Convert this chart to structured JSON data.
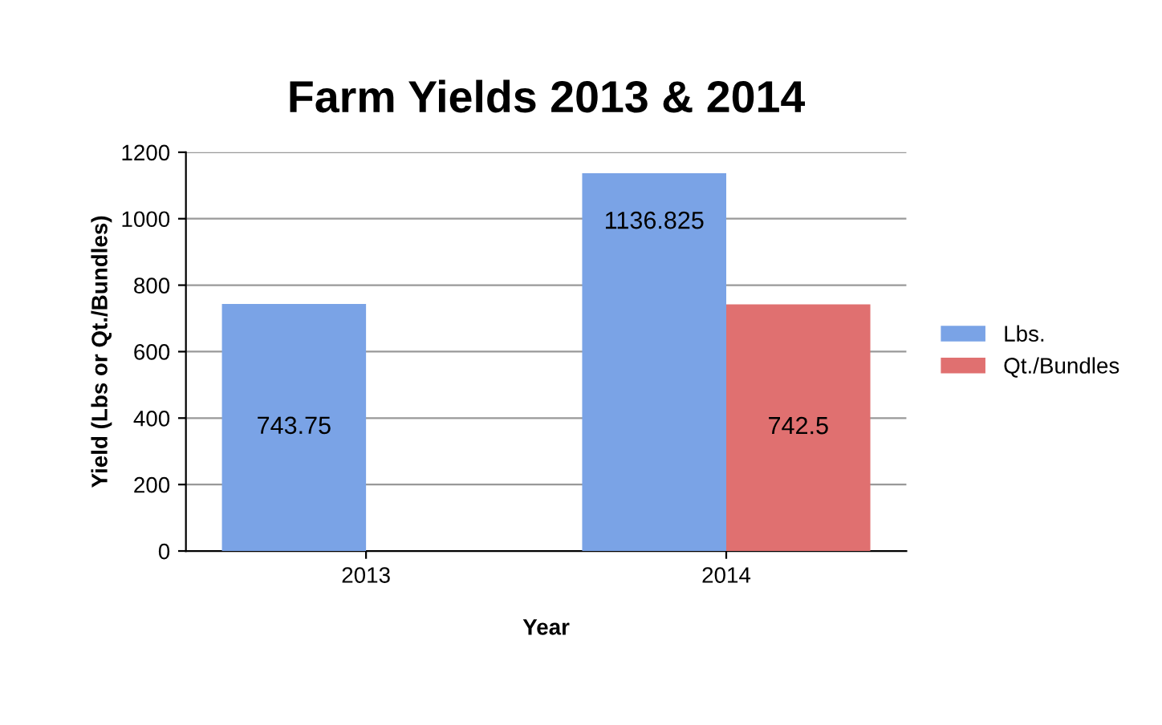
{
  "chart_data": {
    "type": "bar",
    "title": "Farm Yields 2013 & 2014",
    "xlabel": "Year",
    "ylabel": "Yield (Lbs or Qt./Bundles)",
    "categories": [
      "2013",
      "2014"
    ],
    "series": [
      {
        "name": "Lbs.",
        "color": "#7aa3e6",
        "values": [
          743.75,
          1136.825
        ]
      },
      {
        "name": "Qt./Bundles",
        "color": "#e07070",
        "values": [
          null,
          742.5
        ]
      }
    ],
    "ylim": [
      0,
      1200
    ],
    "yticks": [
      0,
      200,
      400,
      600,
      800,
      1000,
      1200
    ],
    "grid": "y",
    "legend": "right",
    "data_labels": true
  }
}
